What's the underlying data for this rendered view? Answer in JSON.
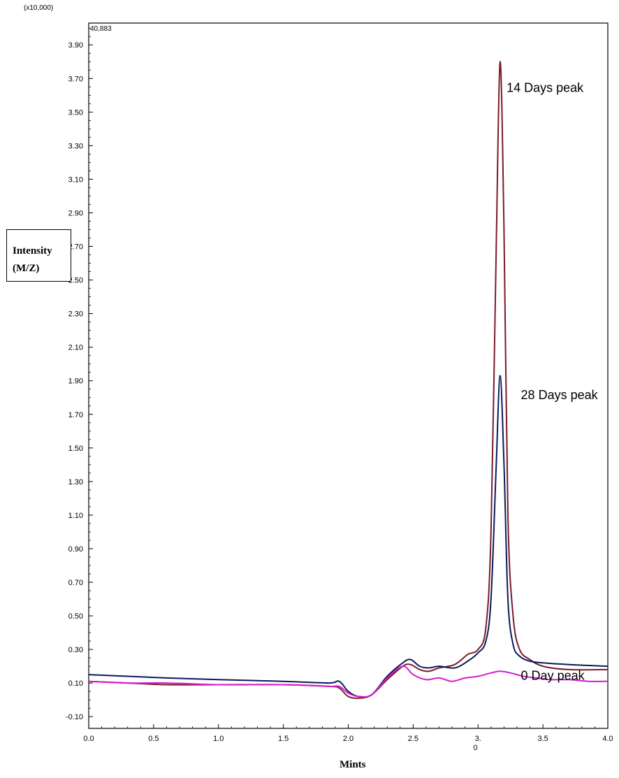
{
  "chart_data": {
    "type": "line",
    "scale_note": "(x10,000)",
    "max_label": "40,883",
    "xlabel": "Mints",
    "ylabel_line1": "Intensity",
    "ylabel_line2": "(M/Z)",
    "xlim": [
      0.0,
      4.0
    ],
    "ylim": [
      -0.17,
      4.03
    ],
    "x_ticks": [
      "0.0",
      "0.5",
      "1.0",
      "1.5",
      "2.0",
      "2.5",
      "3.",
      "3.5",
      "4.0"
    ],
    "x_tick_values": [
      0.0,
      0.5,
      1.0,
      1.5,
      2.0,
      2.5,
      3.0,
      3.5,
      4.0
    ],
    "x_tick_sublabel": "0",
    "y_ticks": [
      "-0.10",
      "0.10",
      "0.30",
      "0.50",
      "0.70",
      "0.90",
      "1.10",
      "1.30",
      "1.50",
      "1.70",
      "1.90",
      "2.10",
      "2.30",
      "2.50",
      "2.70",
      "2.90",
      "3.10",
      "3.30",
      "3.50",
      "3.70",
      "3.90"
    ],
    "y_tick_values": [
      -0.1,
      0.1,
      0.3,
      0.5,
      0.7,
      0.9,
      1.1,
      1.3,
      1.5,
      1.7,
      1.9,
      2.1,
      2.3,
      2.5,
      2.7,
      2.9,
      3.1,
      3.3,
      3.5,
      3.7,
      3.9
    ],
    "series": [
      {
        "color": "#7a1a2a",
        "x": [
          0.0,
          0.3,
          0.6,
          1.0,
          1.5,
          1.85,
          1.93,
          2.0,
          2.08,
          2.18,
          2.3,
          2.42,
          2.48,
          2.55,
          2.62,
          2.7,
          2.82,
          2.92,
          3.0,
          3.06,
          3.1,
          3.14,
          3.17,
          3.2,
          3.23,
          3.27,
          3.32,
          3.4,
          3.5,
          3.7,
          4.0
        ],
        "y": [
          0.11,
          0.1,
          0.09,
          0.09,
          0.09,
          0.08,
          0.07,
          0.02,
          0.01,
          0.03,
          0.12,
          0.2,
          0.21,
          0.18,
          0.17,
          0.19,
          0.21,
          0.27,
          0.3,
          0.43,
          1.0,
          2.7,
          3.8,
          2.8,
          1.1,
          0.5,
          0.3,
          0.24,
          0.2,
          0.18,
          0.18
        ]
      },
      {
        "color": "#0a1a5a",
        "x": [
          0.0,
          0.3,
          0.6,
          1.0,
          1.5,
          1.85,
          1.93,
          2.0,
          2.08,
          2.18,
          2.3,
          2.42,
          2.48,
          2.55,
          2.62,
          2.7,
          2.82,
          2.92,
          3.0,
          3.06,
          3.1,
          3.14,
          3.17,
          3.2,
          3.23,
          3.27,
          3.32,
          3.4,
          3.5,
          3.7,
          4.0
        ],
        "y": [
          0.15,
          0.14,
          0.13,
          0.12,
          0.11,
          0.1,
          0.11,
          0.05,
          0.02,
          0.03,
          0.14,
          0.22,
          0.24,
          0.2,
          0.19,
          0.2,
          0.19,
          0.23,
          0.28,
          0.35,
          0.6,
          1.4,
          1.93,
          1.4,
          0.6,
          0.33,
          0.26,
          0.23,
          0.22,
          0.21,
          0.2
        ]
      },
      {
        "color": "#d81bd0",
        "x": [
          0.0,
          0.3,
          0.6,
          1.0,
          1.5,
          1.85,
          1.93,
          2.0,
          2.08,
          2.18,
          2.3,
          2.42,
          2.5,
          2.6,
          2.7,
          2.8,
          2.9,
          3.0,
          3.1,
          3.17,
          3.25,
          3.35,
          3.45,
          3.55,
          3.7,
          3.85,
          4.0
        ],
        "y": [
          0.11,
          0.1,
          0.1,
          0.09,
          0.09,
          0.08,
          0.08,
          0.04,
          0.02,
          0.03,
          0.13,
          0.2,
          0.15,
          0.12,
          0.13,
          0.11,
          0.13,
          0.14,
          0.16,
          0.17,
          0.16,
          0.14,
          0.13,
          0.12,
          0.12,
          0.11,
          0.11
        ]
      }
    ],
    "annotations": [
      {
        "text": "14 Days peak",
        "x": 3.22,
        "y": 3.62
      },
      {
        "text": "28 Days peak",
        "x": 3.33,
        "y": 1.79
      },
      {
        "text": "0 Day peak",
        "x": 3.33,
        "y": 0.12
      }
    ]
  }
}
